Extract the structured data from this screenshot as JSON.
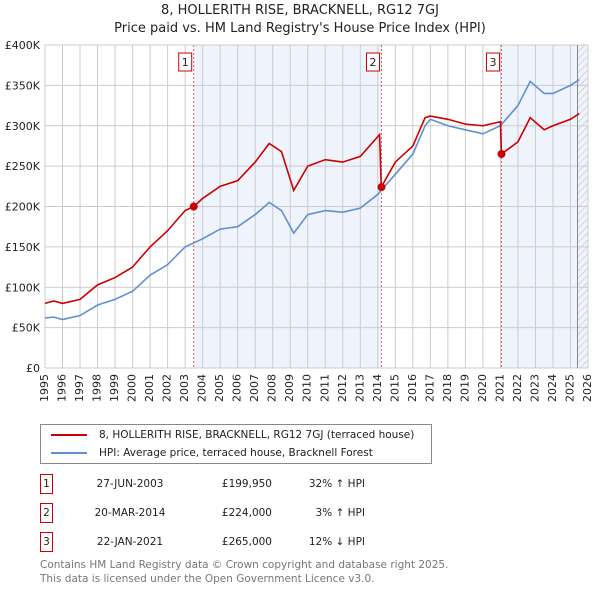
{
  "title": "8, HOLLERITH RISE, BRACKNELL, RG12 7GJ",
  "subtitle": "Price paid vs. HM Land Registry's House Price Index (HPI)",
  "chart_data": {
    "type": "line",
    "xlim": [
      1995,
      2026
    ],
    "ylim": [
      0,
      400000
    ],
    "x_ticks": [
      "1995",
      "1996",
      "1997",
      "1998",
      "1999",
      "2000",
      "2001",
      "2002",
      "2003",
      "2004",
      "2005",
      "2006",
      "2007",
      "2008",
      "2009",
      "2010",
      "2011",
      "2012",
      "2013",
      "2014",
      "2015",
      "2016",
      "2017",
      "2018",
      "2019",
      "2020",
      "2021",
      "2022",
      "2023",
      "2024",
      "2025",
      "2026"
    ],
    "y_ticks": [
      {
        "v": 0,
        "label": "£0"
      },
      {
        "v": 50000,
        "label": "£50K"
      },
      {
        "v": 100000,
        "label": "£100K"
      },
      {
        "v": 150000,
        "label": "£150K"
      },
      {
        "v": 200000,
        "label": "£200K"
      },
      {
        "v": 250000,
        "label": "£250K"
      },
      {
        "v": 300000,
        "label": "£300K"
      },
      {
        "v": 350000,
        "label": "£350K"
      },
      {
        "v": 400000,
        "label": "£400K"
      }
    ],
    "series": [
      {
        "name": "8, HOLLERITH RISE, BRACKNELL, RG12 7GJ (terraced house)",
        "color": "#cc0000",
        "x": [
          1995,
          1995.5,
          1996,
          1997,
          1998,
          1999,
          2000,
          2001,
          2002,
          2003,
          2003.5,
          2004,
          2005,
          2006,
          2007,
          2007.8,
          2008.5,
          2009.2,
          2010,
          2011,
          2012,
          2013,
          2014.1,
          2014.2,
          2015,
          2016,
          2016.7,
          2017,
          2018,
          2019,
          2020,
          2021.0,
          2021.06,
          2022,
          2022.7,
          2023.5,
          2024,
          2025,
          2025.5
        ],
        "y": [
          80000,
          83000,
          80000,
          85000,
          103000,
          112000,
          125000,
          150000,
          170000,
          195000,
          199950,
          210000,
          225000,
          232000,
          255000,
          278000,
          268000,
          220000,
          250000,
          258000,
          255000,
          262000,
          289000,
          224000,
          255000,
          275000,
          310000,
          312000,
          308000,
          302000,
          300000,
          305000,
          265000,
          280000,
          310000,
          295000,
          300000,
          308000,
          315000
        ]
      },
      {
        "name": "HPI: Average price, terraced house, Bracknell Forest",
        "color": "#6090d0",
        "x": [
          1995,
          1995.5,
          1996,
          1997,
          1998,
          1999,
          2000,
          2001,
          2002,
          2003,
          2004,
          2005,
          2006,
          2007,
          2007.8,
          2008.5,
          2009.2,
          2010,
          2011,
          2012,
          2013,
          2014,
          2015,
          2016,
          2016.7,
          2017,
          2018,
          2019,
          2020,
          2021,
          2022,
          2022.7,
          2023.5,
          2024,
          2025,
          2025.5
        ],
        "y": [
          62000,
          63000,
          60000,
          65000,
          78000,
          85000,
          95000,
          115000,
          128000,
          150000,
          160000,
          172000,
          175000,
          190000,
          205000,
          195000,
          167000,
          190000,
          195000,
          193000,
          198000,
          215000,
          240000,
          265000,
          300000,
          308000,
          300000,
          295000,
          290000,
          300000,
          325000,
          355000,
          340000,
          340000,
          350000,
          357000
        ]
      }
    ],
    "sales": [
      {
        "id": "1",
        "x": 2003.49,
        "y": 199950
      },
      {
        "id": "2",
        "x": 2014.21,
        "y": 224000
      },
      {
        "id": "3",
        "x": 2021.06,
        "y": 265000
      }
    ],
    "shaded_ranges": [
      [
        2003.49,
        2014.21
      ],
      [
        2021.06,
        2026
      ]
    ],
    "forecast_from": 2025.4
  },
  "legend": {
    "red": "8, HOLLERITH RISE, BRACKNELL, RG12 7GJ (terraced house)",
    "blue": "HPI: Average price, terraced house, Bracknell Forest"
  },
  "transactions": [
    {
      "n": "1",
      "date": "27-JUN-2003",
      "price": "£199,950",
      "hpi": "32% ↑ HPI"
    },
    {
      "n": "2",
      "date": "20-MAR-2014",
      "price": "£224,000",
      "hpi": "3% ↑ HPI"
    },
    {
      "n": "3",
      "date": "22-JAN-2021",
      "price": "£265,000",
      "hpi": "12% ↓ HPI"
    }
  ],
  "footer": {
    "line1": "Contains HM Land Registry data © Crown copyright and database right 2025.",
    "line2": "This data is licensed under the Open Government Licence v3.0."
  }
}
